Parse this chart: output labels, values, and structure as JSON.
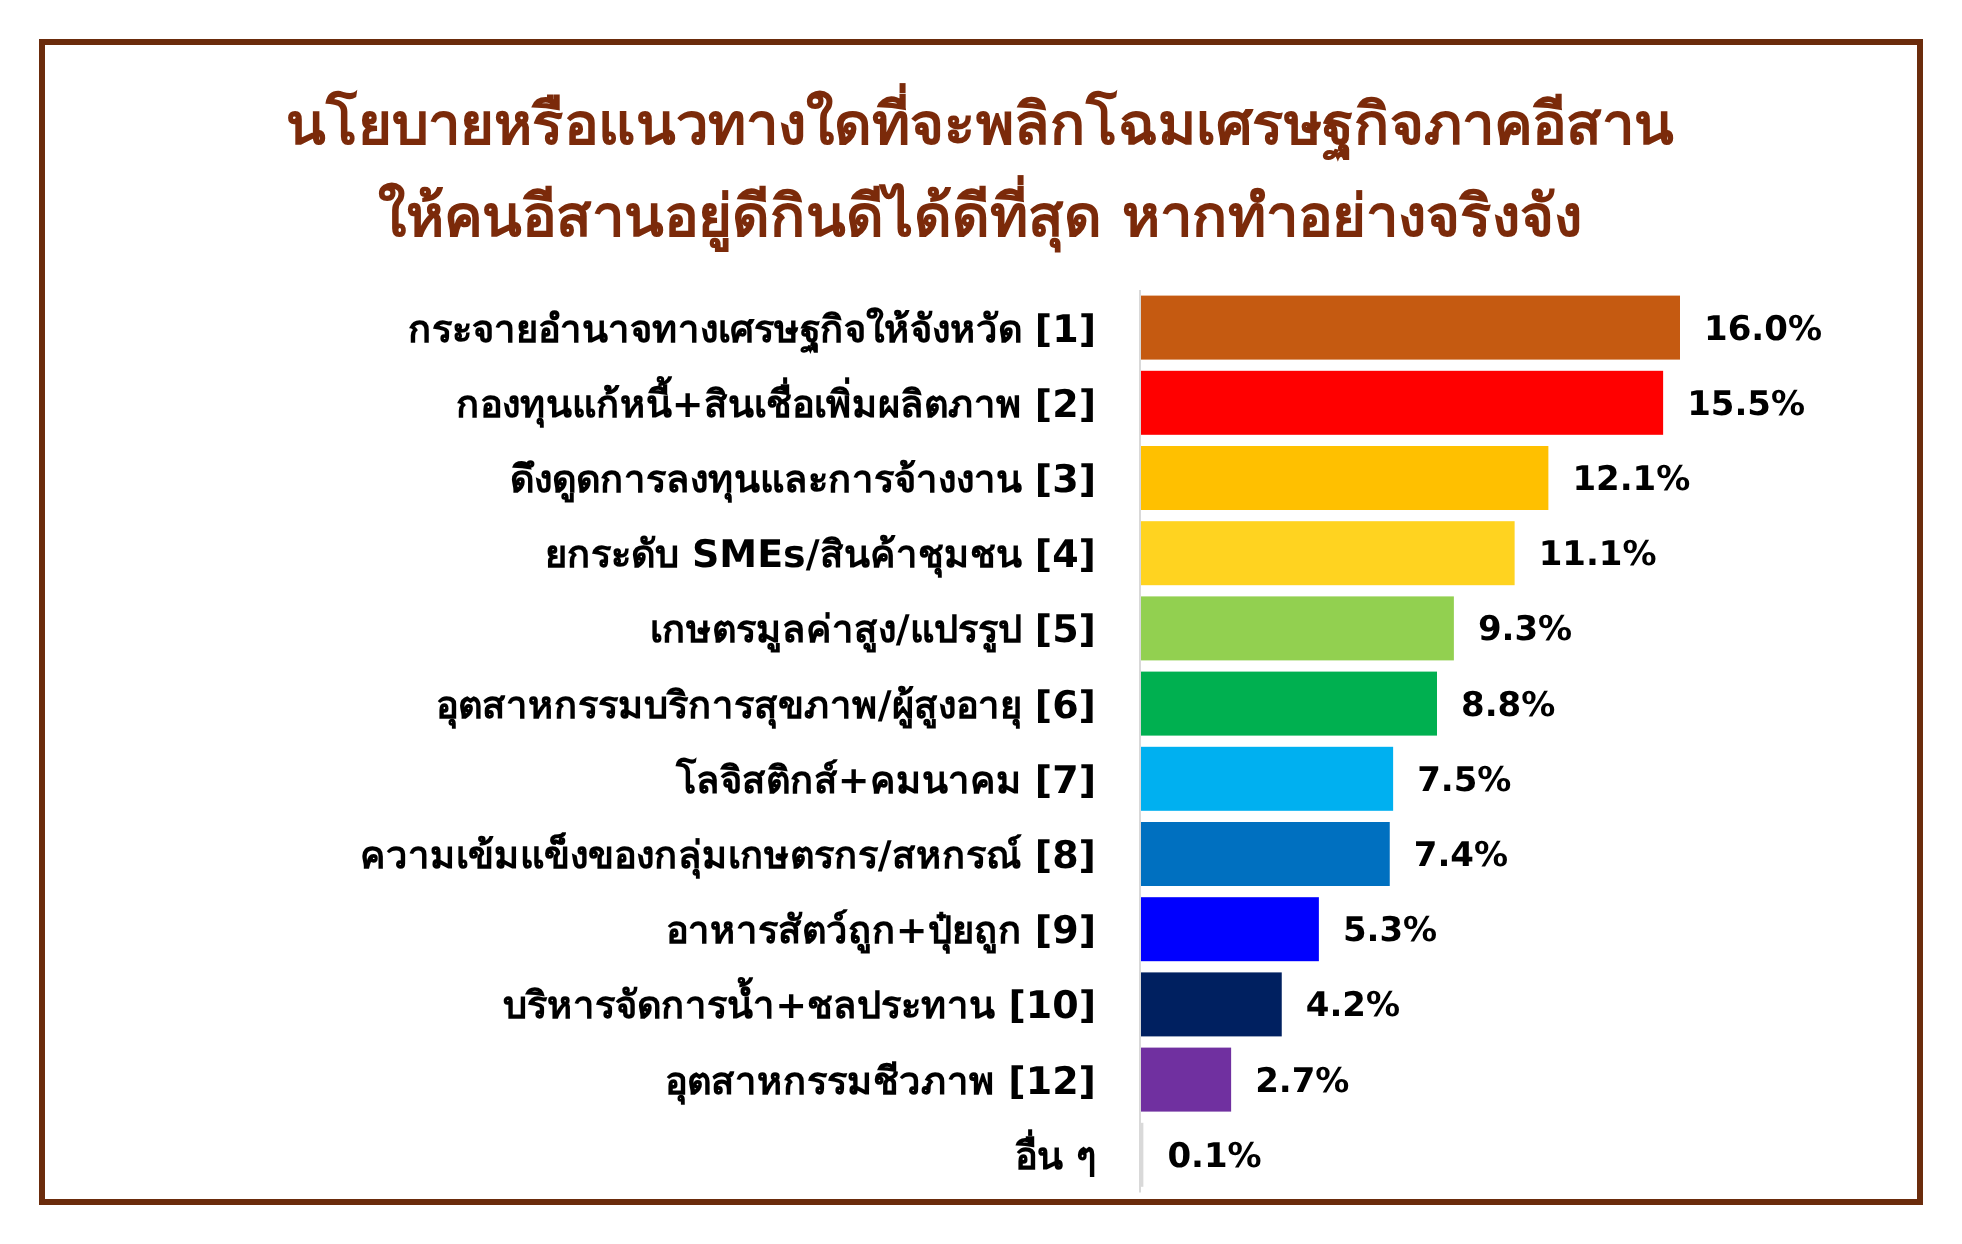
{
  "chart_data": {
    "type": "bar",
    "orientation": "horizontal",
    "title": "นโยบายหรือแนวทางใดที่จะพลิกโฉมเศรษฐกิจภาคอีสาน",
    "subtitle": "ให้คนอีสานอยู่ดีกินดีได้ดีที่สุด หากทำอย่างจริงจัง",
    "categories": [
      "กระจายอำนาจทางเศรษฐกิจให้จังหวัด [1]",
      "กองทุนแก้หนี้+สินเชื่อเพิ่มผลิตภาพ [2]",
      "ดึงดูดการลงทุนและการจ้างงาน [3]",
      "ยกระดับ SMEs/สินค้าชุมชน [4]",
      "เกษตรมูลค่าสูง/แปรรูป [5]",
      "อุตสาหกรรมบริการสุขภาพ/ผู้สูงอายุ [6]",
      "โลจิสติกส์+คมนาคม [7]",
      "ความเข้มแข็งของกลุ่มเกษตรกร/สหกรณ์ [8]",
      "อาหารสัตว์ถูก+ปุ๋ยถูก [9]",
      "บริหารจัดการน้ำ+ชลประทาน [10]",
      "อุตสาหกรรมชีวภาพ [12]",
      "อื่น ๆ"
    ],
    "values": [
      16.0,
      15.5,
      12.1,
      11.1,
      9.3,
      8.8,
      7.5,
      7.4,
      5.3,
      4.2,
      2.7,
      0.1
    ],
    "colors": [
      "#c55a11",
      "#ff0000",
      "#ffc000",
      "#ffd320",
      "#92d050",
      "#00b050",
      "#00b0f0",
      "#0070c0",
      "#0000ff",
      "#002060",
      "#7030a0",
      "#d9d9d9"
    ],
    "value_labels": [
      "16.0%",
      "15.5%",
      "12.1%",
      "11.1%",
      "9.3%",
      "8.8%",
      "7.5%",
      "7.4%",
      "5.3%",
      "4.2%",
      "2.7%",
      "0.1%"
    ]
  }
}
